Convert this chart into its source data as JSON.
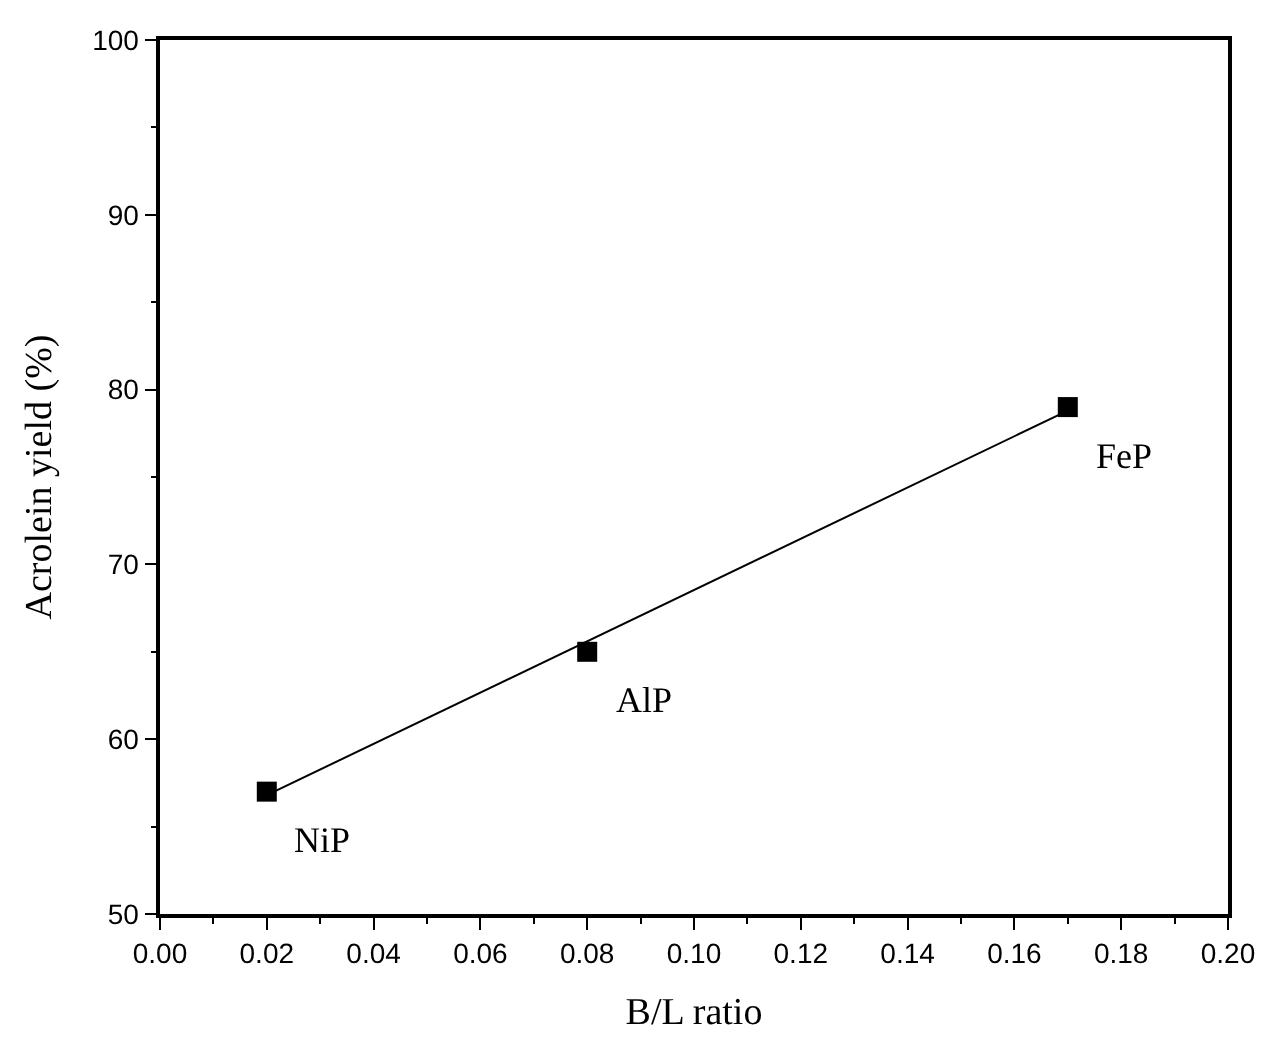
{
  "chart_data": {
    "type": "scatter",
    "xlabel": "B/L ratio",
    "ylabel": "Acrolein yield (%)",
    "x": [
      0.02,
      0.08,
      0.17
    ],
    "series": [
      {
        "color": "#000000",
        "values": [
          57,
          65,
          79
        ],
        "marker": "square"
      },
      {
        "type": "line",
        "color": "#000000",
        "x": [
          0.02,
          0.17
        ],
        "values": [
          56.8,
          78.8
        ],
        "marker": "none",
        "line_style": "solid"
      }
    ],
    "annotations": [
      {
        "text": "NiP",
        "x": 0.02,
        "y": 57
      },
      {
        "text": "AlP",
        "x": 0.08,
        "y": 65
      },
      {
        "text": "FeP",
        "x": 0.17,
        "y": 79
      }
    ],
    "xlim": [
      0,
      0.2
    ],
    "xticks": [
      {
        "value": 0,
        "label": "0.00"
      },
      0.02,
      0.04,
      0.06,
      0.08,
      {
        "value": 0.1,
        "label": "0.10"
      },
      0.12,
      0.14,
      0.16,
      0.18,
      {
        "value": 0.2,
        "label": "0.20"
      }
    ],
    "ylim": [
      50,
      100
    ],
    "yticks": [
      50,
      60,
      70,
      80,
      90,
      100
    ]
  }
}
